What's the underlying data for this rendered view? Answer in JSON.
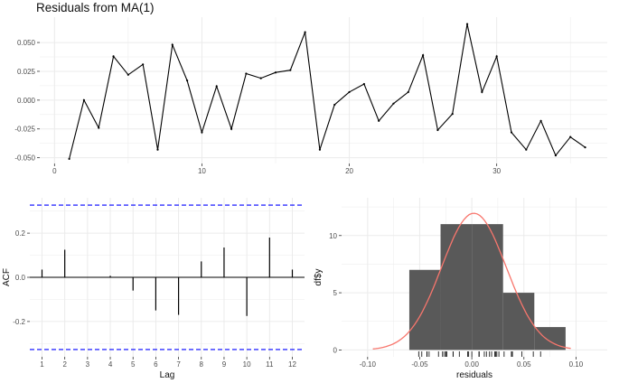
{
  "title": "Residuals from MA(1)",
  "chart_data": [
    {
      "type": "line",
      "title": "Residuals from MA(1)",
      "xlabel": "",
      "ylabel": "",
      "x": [
        1,
        2,
        3,
        4,
        5,
        6,
        7,
        8,
        9,
        10,
        11,
        12,
        13,
        14,
        15,
        16,
        17,
        18,
        19,
        20,
        21,
        22,
        23,
        24,
        25,
        26,
        27,
        28,
        29,
        30,
        31,
        32,
        33,
        34,
        35,
        36
      ],
      "values": [
        -0.051,
        0.0,
        -0.024,
        0.038,
        0.022,
        0.031,
        -0.043,
        0.048,
        0.017,
        -0.028,
        0.012,
        -0.025,
        0.023,
        0.019,
        0.024,
        0.026,
        0.059,
        -0.043,
        -0.004,
        0.007,
        0.014,
        -0.018,
        -0.003,
        0.007,
        0.039,
        -0.026,
        -0.012,
        0.066,
        0.007,
        0.038,
        -0.028,
        -0.043,
        -0.018,
        -0.048,
        -0.032,
        -0.041
      ],
      "xlim": [
        -1,
        37.5
      ],
      "ylim": [
        -0.055,
        0.072
      ],
      "xticks": [
        0,
        10,
        20,
        30
      ],
      "yticks": [
        -0.05,
        -0.025,
        0.0,
        0.025,
        0.05
      ],
      "ytick_labels": [
        "-0.050",
        "-0.025",
        "0.000",
        "0.025",
        "0.050"
      ],
      "grid": true
    },
    {
      "type": "bar",
      "xlabel": "Lag",
      "ylabel": "ACF",
      "categories": [
        1,
        2,
        3,
        4,
        5,
        6,
        7,
        8,
        9,
        10,
        11,
        12
      ],
      "values": [
        0.035,
        0.125,
        0.0,
        0.007,
        -0.06,
        -0.15,
        -0.17,
        0.072,
        0.135,
        -0.175,
        0.18,
        0.035
      ],
      "confidence_bound": 0.327,
      "ylim": [
        -0.36,
        0.36
      ],
      "yticks": [
        -0.2,
        0.0,
        0.2
      ],
      "ytick_labels": [
        "-0.2",
        "0.0",
        "0.2"
      ],
      "grid": true
    },
    {
      "type": "bar",
      "xlabel": "residuals",
      "ylabel": "df$y",
      "bins": [
        {
          "x0": -0.06,
          "x1": -0.03,
          "count": 7
        },
        {
          "x0": -0.03,
          "x1": 0.0,
          "count": 11
        },
        {
          "x0": 0.0,
          "x1": 0.03,
          "count": 11
        },
        {
          "x0": 0.03,
          "x1": 0.06,
          "count": 5
        },
        {
          "x0": 0.06,
          "x1": 0.09,
          "count": 2
        }
      ],
      "density_curve": {
        "mean": 0.002,
        "sd": 0.031,
        "color": "#f8766d"
      },
      "rug": [
        -0.051,
        0.0,
        -0.024,
        0.038,
        0.022,
        0.031,
        -0.043,
        0.048,
        0.017,
        -0.028,
        0.012,
        -0.025,
        0.023,
        0.019,
        0.024,
        0.026,
        0.059,
        -0.043,
        -0.004,
        0.007,
        0.014,
        -0.018,
        -0.003,
        0.007,
        0.039,
        -0.026,
        -0.012,
        0.066,
        0.007,
        0.038,
        -0.028,
        -0.043,
        -0.018,
        -0.048,
        -0.032,
        -0.041
      ],
      "xlim": [
        -0.125,
        0.13
      ],
      "ylim": [
        -0.6,
        13.3
      ],
      "xticks": [
        -0.1,
        -0.05,
        0.0,
        0.05,
        0.1
      ],
      "xtick_labels": [
        "-0.10",
        "-0.05",
        "0.00",
        "0.05",
        "0.10"
      ],
      "yticks": [
        0,
        5,
        10
      ],
      "grid": true
    }
  ]
}
